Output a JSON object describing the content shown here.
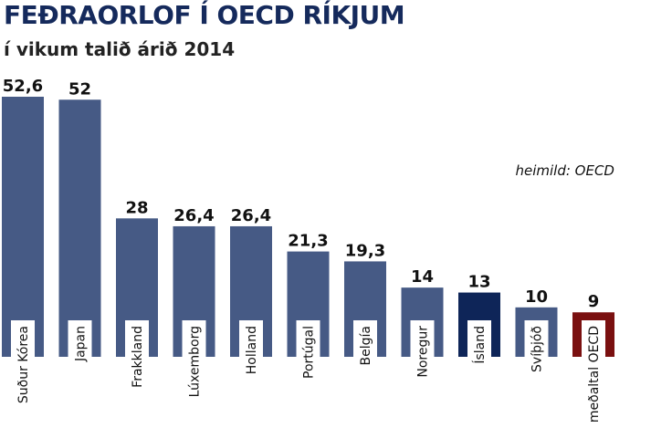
{
  "title": "FEÐRAORLOF Í OECD RÍKJUM",
  "subtitle": "í vikum talið árið 2014",
  "source": "heimild: OECD",
  "colors": {
    "bar_default": "#465a85",
    "bar_iceland": "#0e2558",
    "bar_oecd": "#7a1010",
    "title": "#152a5c"
  },
  "chart_data": {
    "type": "bar",
    "title": "FEÐRAORLOF Í OECD RÍKJUM",
    "subtitle": "í vikum talið árið 2014",
    "categories": [
      "Suður Kórea",
      "Japan",
      "Frakkland",
      "Lúxemborg",
      "Holland",
      "Portúgal",
      "Belgía",
      "Noregur",
      "Ísland",
      "Svíþjóð",
      "meðaltal OECD"
    ],
    "values": [
      52.6,
      52,
      28,
      26.4,
      26.4,
      21.3,
      19.3,
      14,
      13,
      10,
      9
    ],
    "value_labels": [
      "52,6",
      "52",
      "28",
      "26,4",
      "26,4",
      "21,3",
      "19,3",
      "14",
      "13",
      "10",
      "9"
    ],
    "highlight": {
      "Ísland": "bar_iceland",
      "meðaltal OECD": "bar_oecd"
    },
    "xlabel": "",
    "ylabel": "",
    "ylim": [
      0,
      52.6
    ],
    "grid": false,
    "legend": "none"
  }
}
